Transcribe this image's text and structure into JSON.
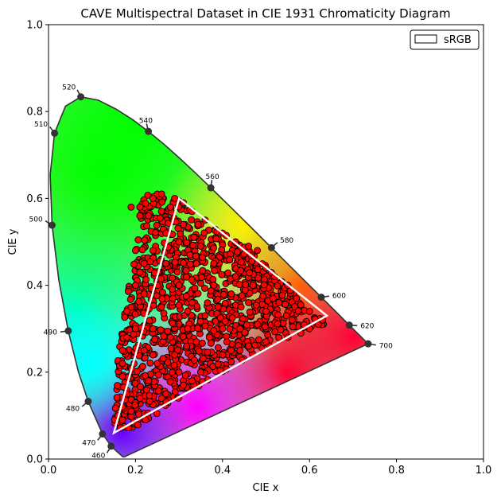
{
  "chart_data": {
    "type": "scatter",
    "title": "CAVE Multispectral Dataset in CIE 1931 Chromaticity Diagram",
    "xlabel": "CIE x",
    "ylabel": "CIE y",
    "xlim": [
      0.0,
      1.0
    ],
    "ylim": [
      0.0,
      1.0
    ],
    "xticks": [
      "0.0",
      "0.2",
      "0.4",
      "0.6",
      "0.8",
      "1.0"
    ],
    "yticks": [
      "0.0",
      "0.2",
      "0.4",
      "0.6",
      "0.8",
      "1.0"
    ],
    "grid": false,
    "legend": {
      "position": "top-right",
      "entries": [
        {
          "name": "sRGB",
          "color": "#000000"
        }
      ]
    },
    "spectral_locus": [
      [
        0.1741,
        0.005
      ],
      [
        0.1714,
        0.0051
      ],
      [
        0.1689,
        0.0069
      ],
      [
        0.1644,
        0.0109
      ],
      [
        0.1566,
        0.0177
      ],
      [
        0.144,
        0.0297
      ],
      [
        0.1241,
        0.0578
      ],
      [
        0.0913,
        0.1327
      ],
      [
        0.0687,
        0.2007
      ],
      [
        0.0454,
        0.295
      ],
      [
        0.0235,
        0.4127
      ],
      [
        0.0082,
        0.5384
      ],
      [
        0.0039,
        0.6548
      ],
      [
        0.0139,
        0.7502
      ],
      [
        0.0389,
        0.812
      ],
      [
        0.0743,
        0.8338
      ],
      [
        0.1142,
        0.8262
      ],
      [
        0.1547,
        0.8059
      ],
      [
        0.1929,
        0.7816
      ],
      [
        0.2296,
        0.7543
      ],
      [
        0.2658,
        0.7243
      ],
      [
        0.3016,
        0.6923
      ],
      [
        0.3373,
        0.6589
      ],
      [
        0.3731,
        0.6245
      ],
      [
        0.4087,
        0.5896
      ],
      [
        0.4441,
        0.5547
      ],
      [
        0.4788,
        0.5202
      ],
      [
        0.5125,
        0.4866
      ],
      [
        0.5448,
        0.4544
      ],
      [
        0.5752,
        0.4242
      ],
      [
        0.6029,
        0.3965
      ],
      [
        0.627,
        0.3725
      ],
      [
        0.6482,
        0.3514
      ],
      [
        0.6658,
        0.334
      ],
      [
        0.6801,
        0.3197
      ],
      [
        0.6915,
        0.3083
      ],
      [
        0.7006,
        0.2993
      ],
      [
        0.7079,
        0.292
      ],
      [
        0.714,
        0.2859
      ],
      [
        0.719,
        0.2809
      ],
      [
        0.723,
        0.277
      ],
      [
        0.726,
        0.274
      ],
      [
        0.7283,
        0.2717
      ],
      [
        0.73,
        0.27
      ],
      [
        0.7311,
        0.2689
      ],
      [
        0.732,
        0.268
      ],
      [
        0.7327,
        0.2673
      ],
      [
        0.7334,
        0.2666
      ],
      [
        0.734,
        0.266
      ],
      [
        0.7344,
        0.2656
      ],
      [
        0.7347,
        0.2653
      ]
    ],
    "wavelength_markers": [
      {
        "label": "460",
        "x": 0.144,
        "y": 0.0297
      },
      {
        "label": "470",
        "x": 0.1241,
        "y": 0.0578
      },
      {
        "label": "480",
        "x": 0.0913,
        "y": 0.1327
      },
      {
        "label": "490",
        "x": 0.0454,
        "y": 0.295
      },
      {
        "label": "500",
        "x": 0.0082,
        "y": 0.5384
      },
      {
        "label": "510",
        "x": 0.0139,
        "y": 0.7502
      },
      {
        "label": "520",
        "x": 0.0743,
        "y": 0.8338
      },
      {
        "label": "540",
        "x": 0.2296,
        "y": 0.7543
      },
      {
        "label": "560",
        "x": 0.3731,
        "y": 0.6245
      },
      {
        "label": "580",
        "x": 0.5125,
        "y": 0.4866
      },
      {
        "label": "600",
        "x": 0.627,
        "y": 0.3725
      },
      {
        "label": "620",
        "x": 0.6915,
        "y": 0.3083
      },
      {
        "label": "700",
        "x": 0.7347,
        "y": 0.2653
      }
    ],
    "series": [
      {
        "name": "sRGB",
        "type": "polygon",
        "color": "#ffffff",
        "points": [
          [
            0.64,
            0.33
          ],
          [
            0.3,
            0.6
          ],
          [
            0.15,
            0.06
          ]
        ]
      },
      {
        "type": "scatter",
        "color": "#ff0000",
        "edgecolor": "#000000",
        "region": [
          [
            0.15,
            0.07
          ],
          [
            0.16,
            0.24
          ],
          [
            0.22,
            0.62
          ],
          [
            0.3,
            0.6
          ],
          [
            0.35,
            0.55
          ],
          [
            0.45,
            0.49
          ],
          [
            0.52,
            0.43
          ],
          [
            0.64,
            0.31
          ],
          [
            0.55,
            0.29
          ],
          [
            0.45,
            0.23
          ],
          [
            0.3,
            0.14
          ],
          [
            0.2,
            0.07
          ]
        ],
        "sample_points": [
          [
            0.19,
            0.58
          ],
          [
            0.21,
            0.58
          ],
          [
            0.21,
            0.56
          ],
          [
            0.23,
            0.56
          ],
          [
            0.24,
            0.6
          ],
          [
            0.25,
            0.61
          ],
          [
            0.26,
            0.61
          ],
          [
            0.22,
            0.45
          ],
          [
            0.21,
            0.43
          ],
          [
            0.2,
            0.4
          ],
          [
            0.22,
            0.38
          ],
          [
            0.18,
            0.34
          ],
          [
            0.2,
            0.3
          ],
          [
            0.17,
            0.25
          ],
          [
            0.17,
            0.22
          ],
          [
            0.17,
            0.19
          ],
          [
            0.18,
            0.15
          ],
          [
            0.17,
            0.12
          ],
          [
            0.16,
            0.1
          ],
          [
            0.17,
            0.09
          ],
          [
            0.26,
            0.14
          ],
          [
            0.27,
            0.15
          ],
          [
            0.31,
            0.17
          ],
          [
            0.33,
            0.18
          ],
          [
            0.35,
            0.2
          ],
          [
            0.4,
            0.24
          ],
          [
            0.42,
            0.25
          ],
          [
            0.44,
            0.25
          ],
          [
            0.46,
            0.26
          ],
          [
            0.5,
            0.27
          ],
          [
            0.55,
            0.28
          ],
          [
            0.58,
            0.29
          ],
          [
            0.6,
            0.3
          ],
          [
            0.62,
            0.31
          ],
          [
            0.63,
            0.32
          ],
          [
            0.6,
            0.34
          ],
          [
            0.57,
            0.37
          ],
          [
            0.55,
            0.4
          ],
          [
            0.52,
            0.42
          ],
          [
            0.5,
            0.44
          ],
          [
            0.48,
            0.48
          ],
          [
            0.46,
            0.49
          ],
          [
            0.43,
            0.5
          ],
          [
            0.4,
            0.52
          ],
          [
            0.36,
            0.55
          ],
          [
            0.33,
            0.57
          ],
          [
            0.31,
            0.59
          ],
          [
            0.29,
            0.6
          ],
          [
            0.28,
            0.58
          ],
          [
            0.3,
            0.5
          ],
          [
            0.34,
            0.45
          ],
          [
            0.38,
            0.4
          ],
          [
            0.42,
            0.38
          ],
          [
            0.46,
            0.36
          ],
          [
            0.5,
            0.34
          ],
          [
            0.36,
            0.33
          ],
          [
            0.32,
            0.3
          ],
          [
            0.28,
            0.28
          ],
          [
            0.26,
            0.35
          ],
          [
            0.3,
            0.4
          ],
          [
            0.4,
            0.3
          ],
          [
            0.44,
            0.3
          ],
          [
            0.48,
            0.31
          ],
          [
            0.38,
            0.45
          ],
          [
            0.33,
            0.36
          ],
          [
            0.24,
            0.3
          ],
          [
            0.22,
            0.25
          ],
          [
            0.25,
            0.22
          ],
          [
            0.29,
            0.24
          ],
          [
            0.34,
            0.27
          ],
          [
            0.39,
            0.35
          ],
          [
            0.43,
            0.42
          ],
          [
            0.35,
            0.49
          ],
          [
            0.27,
            0.45
          ],
          [
            0.25,
            0.4
          ],
          [
            0.27,
            0.52
          ],
          [
            0.31,
            0.54
          ],
          [
            0.37,
            0.28
          ],
          [
            0.41,
            0.27
          ],
          [
            0.53,
            0.36
          ],
          [
            0.56,
            0.32
          ],
          [
            0.47,
            0.4
          ],
          [
            0.3,
            0.2
          ],
          [
            0.23,
            0.18
          ],
          [
            0.21,
            0.14
          ],
          [
            0.19,
            0.11
          ],
          [
            0.18,
            0.28
          ],
          [
            0.19,
            0.35
          ],
          [
            0.2,
            0.48
          ],
          [
            0.24,
            0.48
          ]
        ]
      }
    ]
  }
}
